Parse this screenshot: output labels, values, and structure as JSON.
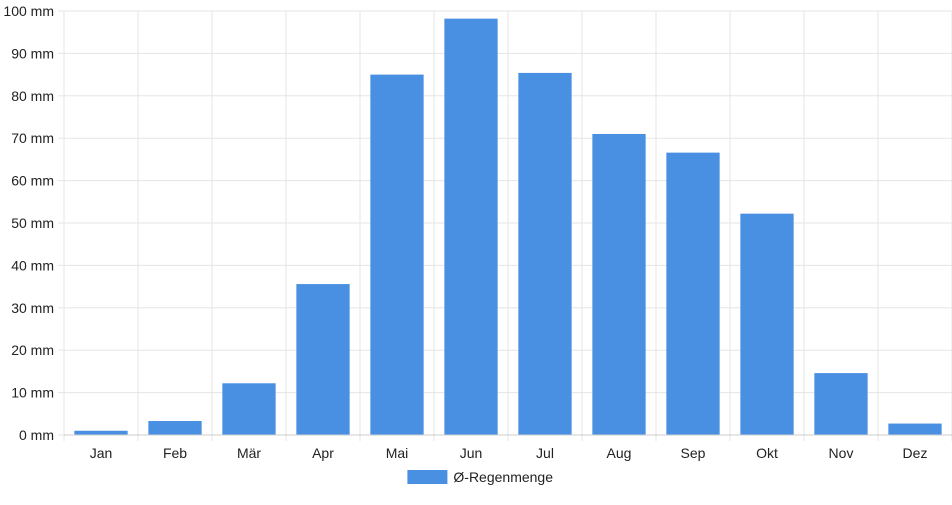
{
  "chart_data": {
    "type": "bar",
    "categories": [
      "Jan",
      "Feb",
      "Mär",
      "Apr",
      "Mai",
      "Jun",
      "Jul",
      "Aug",
      "Sep",
      "Okt",
      "Nov",
      "Dez"
    ],
    "series": [
      {
        "name": "Ø-Regenmenge",
        "values": [
          1.0,
          3.3,
          12.2,
          35.6,
          85.0,
          98.2,
          85.4,
          71.0,
          66.6,
          52.2,
          14.6,
          2.7
        ],
        "color": "#4a90e2"
      }
    ],
    "title": "",
    "xlabel": "",
    "ylabel": "",
    "ylim": [
      0,
      100
    ],
    "yticks": [
      0,
      10,
      20,
      30,
      40,
      50,
      60,
      70,
      80,
      90,
      100
    ],
    "y_unit": "mm",
    "grid": true,
    "legend_position": "bottom",
    "colors": {
      "grid": "#e5e5e5",
      "axis": "#cccccc",
      "text": "#222222"
    }
  }
}
